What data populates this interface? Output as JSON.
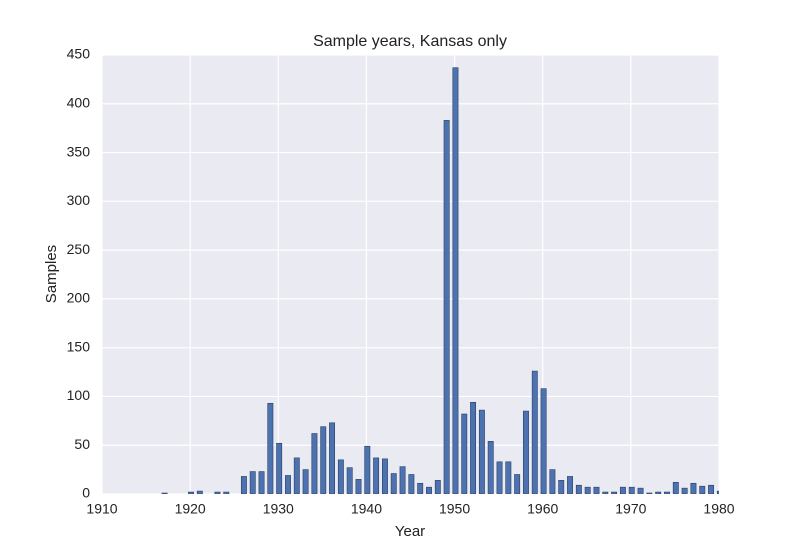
{
  "chart_data": {
    "type": "bar",
    "title": "Sample years, Kansas only",
    "xlabel": "Year",
    "ylabel": "Samples",
    "x": [
      1917,
      1918,
      1919,
      1920,
      1921,
      1922,
      1923,
      1924,
      1925,
      1926,
      1927,
      1928,
      1929,
      1930,
      1931,
      1932,
      1933,
      1934,
      1935,
      1936,
      1937,
      1938,
      1939,
      1940,
      1941,
      1942,
      1943,
      1944,
      1945,
      1946,
      1947,
      1948,
      1949,
      1950,
      1951,
      1952,
      1953,
      1954,
      1955,
      1956,
      1957,
      1958,
      1959,
      1960,
      1961,
      1962,
      1963,
      1964,
      1965,
      1966,
      1967,
      1968,
      1969,
      1970,
      1971,
      1972,
      1973,
      1974,
      1975,
      1976,
      1977,
      1978,
      1979,
      1980
    ],
    "values": [
      1,
      0,
      0,
      2,
      3,
      0,
      2,
      2,
      0,
      18,
      23,
      23,
      93,
      52,
      19,
      37,
      25,
      62,
      69,
      73,
      35,
      27,
      15,
      49,
      37,
      36,
      21,
      28,
      20,
      11,
      7,
      14,
      383,
      437,
      82,
      94,
      86,
      54,
      33,
      33,
      20,
      85,
      126,
      108,
      25,
      14,
      18,
      9,
      7,
      7,
      2,
      2,
      7,
      7,
      6,
      1,
      2,
      2,
      12,
      6,
      11,
      8,
      9,
      3
    ],
    "color": "#4c72b0",
    "xlim": [
      1910,
      1980
    ],
    "xticks": [
      1910,
      1920,
      1930,
      1940,
      1950,
      1960,
      1970,
      1980
    ],
    "ylim": [
      0,
      450
    ],
    "yticks": [
      0,
      50,
      100,
      150,
      200,
      250,
      300,
      350,
      400,
      450
    ],
    "grid": true
  }
}
